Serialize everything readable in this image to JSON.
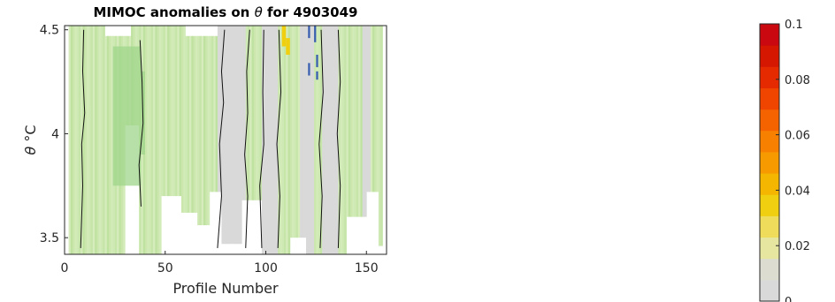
{
  "chart_data": {
    "type": "heatmap",
    "title_prefix": "MIMOC anomalies on ",
    "title_symbol": "θ",
    "title_suffix": "  for 4903049",
    "xlabel": "Profile Number",
    "ylabel_symbol": "θ",
    "ylabel_unit": " °C",
    "xlim": [
      0,
      160
    ],
    "ylim": [
      3.42,
      4.52
    ],
    "xticks": [
      0,
      50,
      100,
      150
    ],
    "yticks": [
      3.5,
      4,
      4.5
    ],
    "colorbar": {
      "range": [
        0,
        0.1
      ],
      "ticks": [
        "0",
        "0.02",
        "0.04",
        "0.06",
        "0.08",
        "0.1"
      ],
      "tick_values": [
        0,
        0.02,
        0.04,
        0.06,
        0.08,
        0.1
      ],
      "colors": [
        "#d9d9d9",
        "#dcdcd0",
        "#e6e6a0",
        "#eedc5a",
        "#f0cf10",
        "#f4b600",
        "#f79a00",
        "#f88000",
        "#f56200",
        "#ef4500",
        "#e52a00",
        "#d51600",
        "#c90810"
      ]
    },
    "profile_bottoms": [
      {
        "x0": 5,
        "x1": 30,
        "bottom": 3.42
      },
      {
        "x0": 30,
        "x1": 37,
        "bottom": 4.04
      },
      {
        "x0": 37,
        "x1": 48,
        "bottom": 3.42
      },
      {
        "x0": 48,
        "x1": 58,
        "bottom": 3.7
      },
      {
        "x0": 58,
        "x1": 66,
        "bottom": 3.62
      },
      {
        "x0": 66,
        "x1": 72,
        "bottom": 3.56
      },
      {
        "x0": 72,
        "x1": 78,
        "bottom": 3.72
      },
      {
        "x0": 78,
        "x1": 88,
        "bottom": 3.47
      },
      {
        "x0": 88,
        "x1": 98,
        "bottom": 3.68
      },
      {
        "x0": 98,
        "x1": 112,
        "bottom": 3.42
      },
      {
        "x0": 112,
        "x1": 120,
        "bottom": 3.5
      },
      {
        "x0": 120,
        "x1": 130,
        "bottom": 3.42
      },
      {
        "x0": 130,
        "x1": 140,
        "bottom": 3.42
      },
      {
        "x0": 140,
        "x1": 150,
        "bottom": 3.6
      },
      {
        "x0": 150,
        "x1": 156,
        "bottom": 3.72
      },
      {
        "x0": 156,
        "x1": 160,
        "bottom": 3.46
      }
    ],
    "top_gaps": [
      {
        "x0": 0,
        "x1": 2,
        "top": 4.52
      },
      {
        "x0": 20,
        "x1": 33,
        "top": 4.47
      },
      {
        "x0": 60,
        "x1": 76,
        "top": 4.47
      }
    ],
    "grey_bands": [
      {
        "x0": 76,
        "x1": 90
      },
      {
        "x0": 98,
        "x1": 106
      },
      {
        "x0": 117,
        "x1": 124
      },
      {
        "x0": 128,
        "x1": 136
      },
      {
        "x0": 148,
        "x1": 152
      }
    ],
    "darker_green_bands": [
      {
        "x0": 24,
        "x1": 38,
        "y0": 3.75,
        "y1": 4.42
      },
      {
        "x0": 38,
        "x1": 40,
        "y0": 3.9,
        "y1": 4.3
      }
    ],
    "hot_cells": [
      {
        "x": 108,
        "y0": 4.42,
        "y1": 4.52,
        "value": 0.04
      },
      {
        "x": 110,
        "y0": 4.38,
        "y1": 4.46,
        "value": 0.03
      }
    ],
    "negative_cells": [
      {
        "x": 121,
        "y0": 4.46,
        "y1": 4.52
      },
      {
        "x": 124,
        "y0": 4.44,
        "y1": 4.52
      },
      {
        "x": 125,
        "y0": 4.32,
        "y1": 4.38
      },
      {
        "x": 121,
        "y0": 4.28,
        "y1": 4.34
      },
      {
        "x": 125,
        "y0": 4.26,
        "y1": 4.3
      }
    ],
    "contours": [
      {
        "x": [
          8,
          9,
          8.5,
          10,
          9,
          9.5
        ],
        "y": [
          3.45,
          3.75,
          3.95,
          4.1,
          4.3,
          4.5
        ]
      },
      {
        "x": [
          38,
          37,
          39,
          38.5,
          37.5
        ],
        "y": [
          3.65,
          3.85,
          4.05,
          4.25,
          4.45
        ]
      },
      {
        "x": [
          76,
          78,
          77,
          79,
          78,
          79.5
        ],
        "y": [
          3.45,
          3.7,
          3.95,
          4.15,
          4.3,
          4.5
        ]
      },
      {
        "x": [
          90,
          91,
          89.5,
          91,
          90.5,
          92
        ],
        "y": [
          3.45,
          3.7,
          3.9,
          4.1,
          4.3,
          4.5
        ]
      },
      {
        "x": [
          98,
          97,
          99,
          98.5,
          99
        ],
        "y": [
          3.45,
          3.75,
          3.95,
          4.2,
          4.5
        ]
      },
      {
        "x": [
          106,
          107,
          105.5,
          107.5,
          106.5
        ],
        "y": [
          3.45,
          3.7,
          3.95,
          4.2,
          4.5
        ]
      },
      {
        "x": [
          127,
          128,
          126.5,
          128.5,
          127.5
        ],
        "y": [
          3.45,
          3.7,
          3.95,
          4.2,
          4.5
        ]
      },
      {
        "x": [
          136,
          137,
          135.5,
          137,
          136
        ],
        "y": [
          3.45,
          3.75,
          4.0,
          4.25,
          4.5
        ]
      }
    ]
  }
}
